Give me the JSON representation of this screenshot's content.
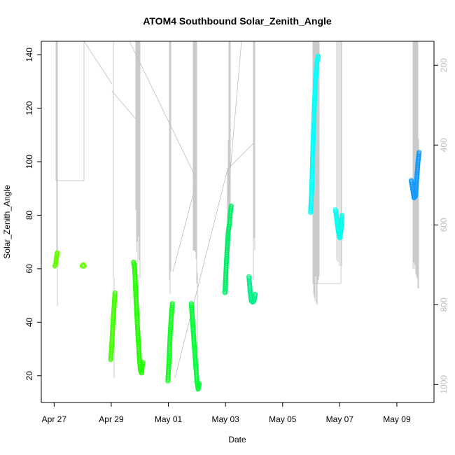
{
  "chart_data": {
    "type": "scatter",
    "title": "ATOM4 Southbound Solar_Zenith_Angle",
    "xlabel": "Date",
    "ylabel": "Solar_Zenith_Angle",
    "x_unit": "days since Apr 27 (00:00)",
    "xlim": [
      -0.45,
      13.3
    ],
    "ylim": [
      10,
      145
    ],
    "x_ticks": [
      {
        "label": "Apr 27",
        "value": 0
      },
      {
        "label": "Apr 29",
        "value": 2
      },
      {
        "label": "May 01",
        "value": 4
      },
      {
        "label": "May 03",
        "value": 6
      },
      {
        "label": "May 05",
        "value": 8
      },
      {
        "label": "May 07",
        "value": 10
      },
      {
        "label": "May 09",
        "value": 12
      }
    ],
    "y_ticks": [
      20,
      40,
      60,
      80,
      100,
      120,
      140
    ],
    "y2_ticks": [
      200,
      400,
      600,
      800,
      1000
    ],
    "y2_lim": [
      140,
      1045
    ],
    "grid": false,
    "colors": {
      "trace": "#bdbdbd",
      "axis": "#000000",
      "right_axis": "#bdbdbd"
    },
    "series": [
      {
        "color": "#66ff00",
        "points": [
          [
            0.02,
            61
          ],
          [
            0.05,
            61.5
          ],
          [
            0.08,
            64
          ],
          [
            0.11,
            66
          ]
        ]
      },
      {
        "color": "#66ff00",
        "points": [
          [
            0.98,
            61
          ],
          [
            1.02,
            61.5
          ],
          [
            1.05,
            61
          ]
        ]
      },
      {
        "color": "#44ff00",
        "points": [
          [
            1.98,
            26
          ],
          [
            2.02,
            32
          ],
          [
            2.06,
            40
          ],
          [
            2.1,
            46
          ],
          [
            2.13,
            51
          ]
        ]
      },
      {
        "color": "#22ff00",
        "points": [
          [
            2.78,
            62.5
          ],
          [
            2.82,
            60
          ],
          [
            2.86,
            50
          ],
          [
            2.92,
            38
          ],
          [
            2.98,
            27
          ],
          [
            3.02,
            22
          ],
          [
            3.06,
            21
          ],
          [
            3.1,
            25
          ]
        ]
      },
      {
        "color": "#11ff22",
        "points": [
          [
            3.98,
            18
          ],
          [
            4.02,
            25
          ],
          [
            4.06,
            35
          ],
          [
            4.1,
            42
          ],
          [
            4.14,
            47
          ]
        ]
      },
      {
        "color": "#00ff33",
        "points": [
          [
            4.8,
            47
          ],
          [
            4.85,
            40
          ],
          [
            4.9,
            32
          ],
          [
            4.95,
            25
          ],
          [
            5.0,
            18
          ],
          [
            5.04,
            15
          ],
          [
            5.08,
            17
          ]
        ]
      },
      {
        "color": "#00ee66",
        "points": [
          [
            5.98,
            51
          ],
          [
            6.02,
            60
          ],
          [
            6.06,
            68
          ],
          [
            6.1,
            74
          ],
          [
            6.14,
            77
          ],
          [
            6.16,
            80
          ],
          [
            6.2,
            83.5
          ]
        ]
      },
      {
        "color": "#00ee88",
        "points": [
          [
            6.82,
            57
          ],
          [
            6.86,
            52
          ],
          [
            6.9,
            48
          ],
          [
            6.95,
            47.5
          ],
          [
            7.0,
            48
          ],
          [
            7.04,
            50.5
          ]
        ]
      },
      {
        "color": "#00ffff",
        "points": [
          [
            8.98,
            81
          ],
          [
            9.02,
            90
          ],
          [
            9.06,
            105
          ],
          [
            9.1,
            118
          ],
          [
            9.15,
            130
          ],
          [
            9.2,
            137
          ],
          [
            9.25,
            139.5
          ]
        ]
      },
      {
        "color": "#00ffee",
        "points": [
          [
            9.85,
            82
          ],
          [
            9.9,
            78
          ],
          [
            9.95,
            74
          ],
          [
            10.0,
            71.5
          ],
          [
            10.04,
            74
          ],
          [
            10.08,
            80
          ]
        ]
      },
      {
        "color": "#1199ff",
        "points": [
          [
            12.5,
            93
          ],
          [
            12.55,
            90
          ],
          [
            12.6,
            86.5
          ],
          [
            12.65,
            87
          ],
          [
            12.7,
            94
          ],
          [
            12.74,
            100
          ],
          [
            12.78,
            103.5
          ]
        ]
      }
    ]
  }
}
